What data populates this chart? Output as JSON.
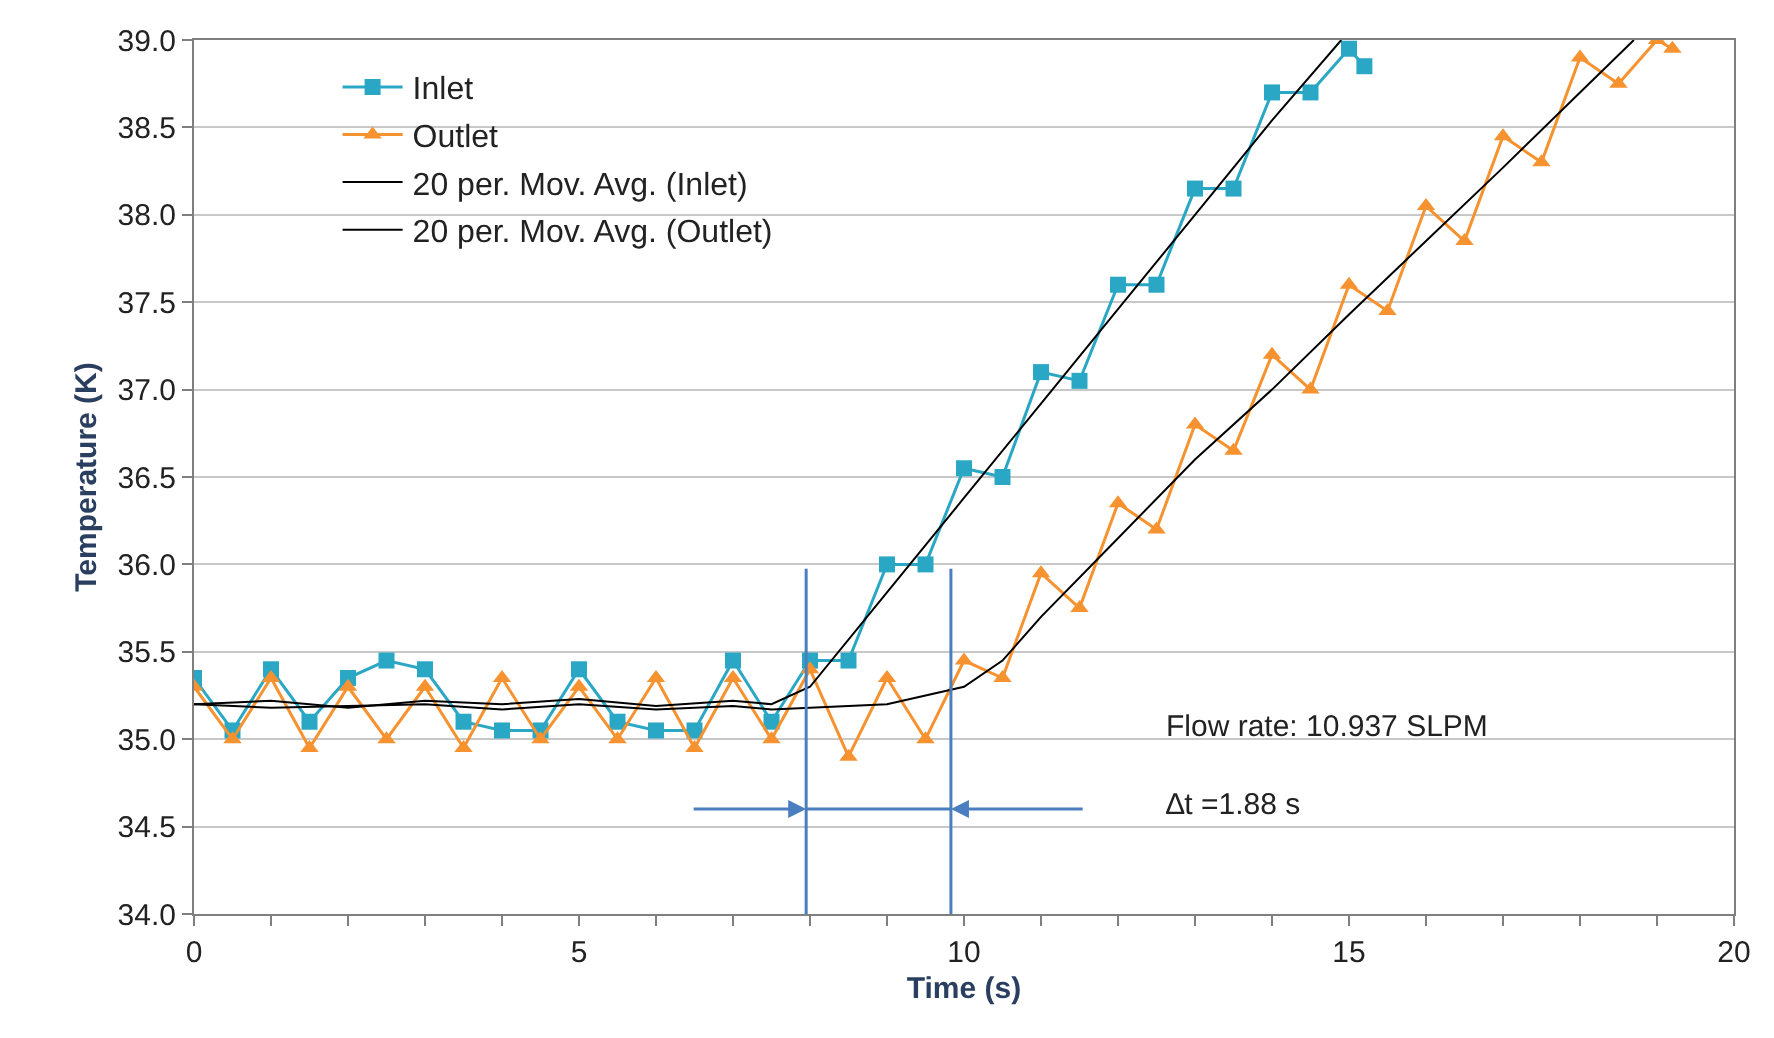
{
  "chart_data": {
    "type": "line",
    "xlabel": "Time (s)",
    "ylabel": "Temperature (K)",
    "xlim": [
      0,
      20
    ],
    "xticks": [
      0,
      {
        "value": 1,
        "label": null
      },
      {
        "value": 2,
        "label": null
      },
      {
        "value": 3,
        "label": null
      },
      {
        "value": 4,
        "label": null
      },
      5,
      {
        "value": 6,
        "label": null
      },
      {
        "value": 7,
        "label": null
      },
      {
        "value": 8,
        "label": null
      },
      {
        "value": 9,
        "label": null
      },
      10,
      {
        "value": 11,
        "label": null
      },
      {
        "value": 12,
        "label": null
      },
      {
        "value": 13,
        "label": null
      },
      {
        "value": 14,
        "label": null
      },
      15,
      {
        "value": 16,
        "label": null
      },
      {
        "value": 17,
        "label": null
      },
      {
        "value": 18,
        "label": null
      },
      {
        "value": 19,
        "label": null
      },
      20
    ],
    "ylim": [
      34,
      39
    ],
    "yticks": [
      {
        "value": 34,
        "label": "34.0"
      },
      34.5,
      {
        "value": 35,
        "label": "35.0"
      },
      35.5,
      {
        "value": 36,
        "label": "36.0"
      },
      36.5,
      {
        "value": 37,
        "label": "37.0"
      },
      37.5,
      {
        "value": 38,
        "label": "38.0"
      },
      38.5,
      {
        "value": 39,
        "label": "39.0"
      }
    ],
    "grid": "y",
    "legend": "top left",
    "series": [
      {
        "name": "Inlet",
        "color": "#2aa7c4",
        "marker": "square",
        "x": [
          0,
          0.5,
          1,
          1.5,
          2,
          2.5,
          3,
          3.5,
          4,
          4.5,
          5,
          5.5,
          6,
          6.5,
          7,
          7.5,
          8,
          8.5,
          9,
          9.5,
          10,
          10.5,
          11,
          11.5,
          12,
          12.5,
          13,
          13.5,
          14,
          14.5,
          15,
          15.2
        ],
        "values": [
          35.35,
          35.05,
          35.4,
          35.1,
          35.35,
          35.45,
          35.4,
          35.1,
          35.05,
          35.05,
          35.4,
          35.1,
          35.05,
          35.05,
          35.45,
          35.1,
          35.45,
          35.45,
          36.0,
          36.0,
          36.55,
          36.5,
          37.1,
          37.05,
          37.6,
          37.6,
          38.15,
          38.15,
          38.7,
          38.7,
          38.95,
          38.85
        ]
      },
      {
        "name": "Outlet",
        "color": "#f6922f",
        "marker": "triangle",
        "x": [
          0,
          0.5,
          1,
          1.5,
          2,
          2.5,
          3,
          3.5,
          4,
          4.5,
          5,
          5.5,
          6,
          6.5,
          7,
          7.5,
          8,
          8.5,
          9,
          9.5,
          10,
          10.5,
          11,
          11.5,
          12,
          12.5,
          13,
          13.5,
          14,
          14.5,
          15,
          15.5,
          16,
          16.5,
          17,
          17.5,
          18,
          18.5,
          19,
          19.2
        ],
        "values": [
          35.3,
          35.0,
          35.35,
          34.95,
          35.3,
          35.0,
          35.3,
          34.95,
          35.35,
          35.0,
          35.3,
          35.0,
          35.35,
          34.95,
          35.35,
          35.0,
          35.4,
          34.9,
          35.35,
          35.0,
          35.45,
          35.35,
          35.95,
          35.75,
          36.35,
          36.2,
          36.8,
          36.65,
          37.2,
          37.0,
          37.6,
          37.45,
          38.05,
          37.85,
          38.45,
          38.3,
          38.9,
          38.75,
          39.0,
          38.95
        ]
      },
      {
        "name": "20 per. Mov. Avg. (Inlet)",
        "color": "#000000",
        "marker": "none",
        "x": [
          0,
          1,
          2,
          3,
          4,
          5,
          6,
          7,
          7.5,
          8,
          9,
          10,
          11,
          12,
          13,
          14,
          14.9
        ],
        "values": [
          35.2,
          35.22,
          35.18,
          35.22,
          35.2,
          35.23,
          35.19,
          35.22,
          35.2,
          35.3,
          35.84,
          36.38,
          36.92,
          37.46,
          38.0,
          38.54,
          39.0
        ]
      },
      {
        "name": "20 per. Mov. Avg. (Outlet)",
        "color": "#000000",
        "marker": "none",
        "x": [
          0,
          1,
          2,
          3,
          4,
          5,
          6,
          7,
          7.5,
          8,
          9,
          10,
          10.5,
          11,
          12,
          13,
          14,
          15,
          16,
          17,
          18,
          18.7
        ],
        "values": [
          35.2,
          35.18,
          35.19,
          35.2,
          35.17,
          35.2,
          35.17,
          35.19,
          35.17,
          35.18,
          35.2,
          35.3,
          35.45,
          35.7,
          36.15,
          36.6,
          37.0,
          37.43,
          37.85,
          38.27,
          38.7,
          39.0
        ]
      }
    ],
    "ref_lines": [
      {
        "axis": "x",
        "value": 7.95,
        "color": "#4a7ebf"
      },
      {
        "axis": "x",
        "value": 9.83,
        "color": "#4a7ebf"
      }
    ],
    "annotations": [
      "Flow rate: 10.937 SLPM",
      "∆t =1.88 s"
    ]
  }
}
